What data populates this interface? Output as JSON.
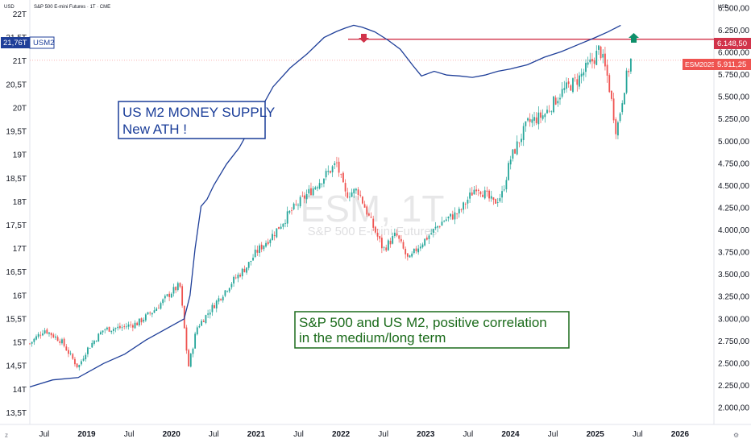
{
  "header": {
    "title": "S&P 500 E-mini Futures · 1T · CME",
    "left_unit": "USD",
    "right_unit": "USD"
  },
  "watermark": {
    "symbol": "ESM, 1T",
    "name": "S&P 500 E-mini Futures"
  },
  "annotations": {
    "m2_box": {
      "line1": "US M2 MONEY SUPPLY",
      "line2": "New ATH !"
    },
    "spx_box": {
      "line1": "S&P 500 and US M2, positive correlation",
      "line2": "in the medium/long term"
    }
  },
  "labels": {
    "m2_value": "21,76T",
    "m2_symbol": "USM2",
    "resistance_value": "6.148,50",
    "es_symbol": "ESM2025",
    "es_value": "5.911,25"
  },
  "colors": {
    "m2_line": "#1f3f99",
    "resistance": "#d1334a",
    "candle_up": "#26a69a",
    "candle_down": "#ef5350",
    "box_blue": "#1a3d99",
    "box_green": "#1b6b1b",
    "arrow_down": "#d1334a",
    "arrow_up": "#0e8f6a"
  },
  "chart_data": {
    "type": "line",
    "title": "S&P 500 E-mini Futures · 1T · CME",
    "left_axis": {
      "name": "US M2 money supply",
      "unit": "USD",
      "range": [
        13.25,
        22.3
      ],
      "ticks": [
        "13,5T",
        "14T",
        "14,5T",
        "15T",
        "15,5T",
        "16T",
        "16,5T",
        "17T",
        "17,5T",
        "18T",
        "18,5T",
        "19T",
        "19,5T",
        "20T",
        "20,5T",
        "21T",
        "21,5T",
        "22T"
      ]
    },
    "right_axis": {
      "name": "S&P 500 E-mini Futures",
      "unit": "USD",
      "range": [
        1810,
        6590
      ],
      "ticks": [
        "2.000,00",
        "2.250,00",
        "2.500,00",
        "2.750,00",
        "3.000,00",
        "3.250,00",
        "3.500,00",
        "3.750,00",
        "4.000,00",
        "4.250,00",
        "4.500,00",
        "4.750,00",
        "5.000,00",
        "5.250,00",
        "5.500,00",
        "5.750,00",
        "6.000,00",
        "6.250,00",
        "6.500,00"
      ]
    },
    "x_axis": {
      "range": [
        2018.33,
        2026.4
      ],
      "ticks": [
        "Jul",
        "2019",
        "Jul",
        "2020",
        "Jul",
        "2021",
        "Jul",
        "2022",
        "Jul",
        "2023",
        "Jul",
        "2024",
        "Jul",
        "2025",
        "Jul",
        "2026"
      ]
    },
    "grid": false,
    "series": [
      {
        "name": "USM2",
        "axis": "left",
        "style": "line",
        "x": [
          2018.33,
          2018.6,
          2018.9,
          2019.2,
          2019.45,
          2019.7,
          2020.0,
          2020.15,
          2020.22,
          2020.28,
          2020.35,
          2020.42,
          2020.5,
          2020.65,
          2020.8,
          2021.0,
          2021.2,
          2021.4,
          2021.6,
          2021.8,
          2021.95,
          2022.05,
          2022.15,
          2022.25,
          2022.4,
          2022.55,
          2022.7,
          2022.85,
          2022.95,
          2023.1,
          2023.25,
          2023.4,
          2023.55,
          2023.7,
          2023.85,
          2024.0,
          2024.2,
          2024.4,
          2024.6,
          2024.8,
          2025.0,
          2025.15,
          2025.3
        ],
        "values": [
          14.05,
          14.2,
          14.25,
          14.55,
          14.75,
          15.05,
          15.35,
          15.5,
          16.0,
          17.0,
          17.9,
          18.05,
          18.35,
          18.8,
          19.15,
          19.8,
          20.45,
          20.85,
          21.15,
          21.5,
          21.63,
          21.7,
          21.76,
          21.72,
          21.62,
          21.45,
          21.25,
          20.9,
          20.68,
          20.78,
          20.7,
          20.68,
          20.65,
          20.7,
          20.78,
          20.83,
          20.92,
          21.08,
          21.2,
          21.35,
          21.5,
          21.62,
          21.76
        ]
      },
      {
        "name": "ESM2025",
        "axis": "right",
        "style": "candles",
        "x": [
          2018.33,
          2018.5,
          2018.7,
          2018.9,
          2019.0,
          2019.2,
          2019.4,
          2019.6,
          2019.8,
          2020.0,
          2020.1,
          2020.2,
          2020.3,
          2020.5,
          2020.7,
          2020.9,
          2021.0,
          2021.2,
          2021.4,
          2021.6,
          2021.8,
          2021.95,
          2022.05,
          2022.2,
          2022.35,
          2022.5,
          2022.65,
          2022.8,
          2022.9,
          2023.0,
          2023.2,
          2023.4,
          2023.6,
          2023.8,
          2023.9,
          2024.0,
          2024.2,
          2024.4,
          2024.6,
          2024.8,
          2025.0,
          2025.05,
          2025.15,
          2025.25,
          2025.35,
          2025.42
        ],
        "values": [
          2720,
          2880,
          2750,
          2450,
          2650,
          2880,
          2900,
          2950,
          3100,
          3300,
          3380,
          2450,
          2900,
          3150,
          3400,
          3600,
          3750,
          3950,
          4200,
          4400,
          4600,
          4750,
          4400,
          4450,
          4100,
          3780,
          3950,
          3650,
          3800,
          3900,
          4100,
          4200,
          4500,
          4300,
          4400,
          4800,
          5200,
          5300,
          5550,
          5700,
          5950,
          6050,
          5700,
          5100,
          5650,
          5911.25
        ]
      },
      {
        "name": "ATH resistance",
        "axis": "right",
        "style": "hline",
        "value": 6148.5
      }
    ]
  }
}
